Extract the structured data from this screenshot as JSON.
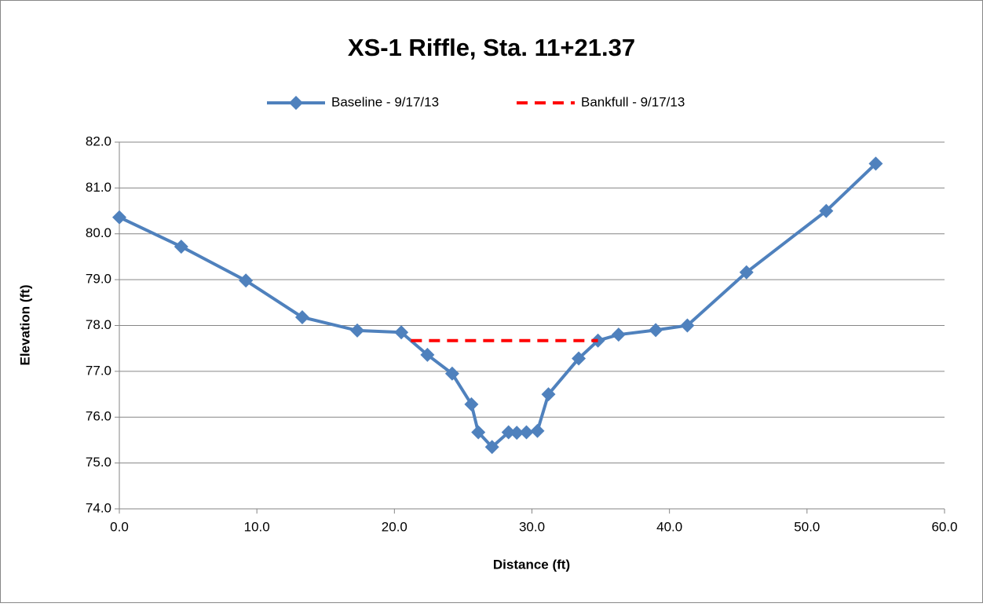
{
  "chart_data": {
    "type": "line",
    "title": "XS-1 Riffle, Sta. 11+21.37",
    "x_label": "Distance (ft)",
    "y_label": "Elevation (ft)",
    "xlim": [
      0,
      60
    ],
    "xticks": [
      {
        "value": 0,
        "label": "0.0"
      },
      {
        "value": 10,
        "label": "10.0"
      },
      {
        "value": 20,
        "label": "20.0"
      },
      {
        "value": 30,
        "label": "30.0"
      },
      {
        "value": 40,
        "label": "40.0"
      },
      {
        "value": 50,
        "label": "50.0"
      },
      {
        "value": 60,
        "label": "60.0"
      }
    ],
    "ylim": [
      74,
      82
    ],
    "yticks": [
      {
        "value": 74,
        "label": "74.0"
      },
      {
        "value": 75,
        "label": "75.0"
      },
      {
        "value": 76,
        "label": "76.0"
      },
      {
        "value": 77,
        "label": "77.0"
      },
      {
        "value": 78,
        "label": "78.0"
      },
      {
        "value": 79,
        "label": "79.0"
      },
      {
        "value": 80,
        "label": "80.0"
      },
      {
        "value": 81,
        "label": "81.0"
      },
      {
        "value": 82,
        "label": "82.0"
      }
    ],
    "grid": true,
    "legend": "top",
    "series": [
      {
        "name": "Baseline - 9/17/13",
        "color": "#4f81bd",
        "style": "solid",
        "marker": "diamond",
        "x": [
          0,
          4.5,
          9.2,
          13.3,
          17.3,
          20.5,
          22.4,
          24.2,
          25.6,
          26.1,
          27.1,
          28.3,
          28.9,
          29.6,
          30.4,
          31.2,
          33.4,
          34.8,
          36.3,
          39.0,
          41.3,
          45.6,
          51.4,
          55.0
        ],
        "values": [
          80.36,
          79.72,
          78.98,
          78.18,
          77.89,
          77.85,
          77.36,
          76.95,
          76.28,
          75.67,
          75.35,
          75.67,
          75.66,
          75.67,
          75.7,
          76.5,
          77.28,
          77.67,
          77.8,
          77.9,
          78.0,
          79.16,
          80.5,
          81.53
        ]
      },
      {
        "name": "Bankfull - 9/17/13",
        "color": "#ff0000",
        "style": "dashed",
        "marker": "none",
        "x": [
          21.2,
          34.8
        ],
        "values": [
          77.67,
          77.67
        ]
      }
    ]
  }
}
